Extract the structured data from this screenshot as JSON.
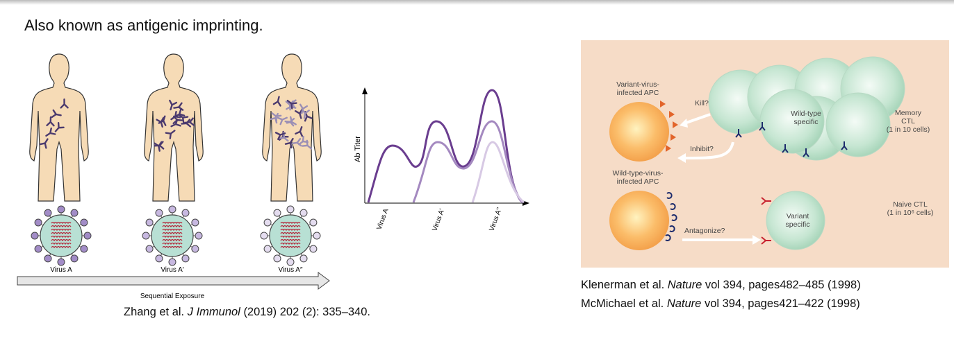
{
  "header": {
    "title": "Also known as antigenic imprinting."
  },
  "left_figure": {
    "virus_labels": [
      "Virus A",
      "Virus A′",
      "Virus A″"
    ],
    "arrow_label": "Sequential Exposure",
    "graph": {
      "y_axis_label": "Ab Titer",
      "x_labels": [
        "Virus A",
        "Virus A'",
        "Virus A''"
      ]
    },
    "citation": {
      "authors": "Zhang et al.",
      "journal": "J Immunol",
      "details": "(2019) 202 (2): 335–340."
    }
  },
  "right_figure": {
    "variant_apc": [
      "Variant-virus-",
      "infected APC"
    ],
    "kill": "Kill?",
    "inhibit": "Inhibit?",
    "wild_type_specific": [
      "Wild-type",
      "specific"
    ],
    "memory_ctl": [
      "Memory",
      "CTL",
      "(1 in 10 cells)"
    ],
    "wild_type_apc": [
      "Wild-type-virus-",
      "infected APC"
    ],
    "antagonize": "Antagonize?",
    "variant_specific": [
      "Variant",
      "specific"
    ],
    "naive_ctl": [
      "Naive CTL",
      "(1 in 10⁶ cells)"
    ],
    "citations": [
      {
        "authors": "Klenerman et al.",
        "journal": "Nature",
        "details": "vol 394, pages482–485 (1998)"
      },
      {
        "authors": "McMichael et al.",
        "journal": "Nature",
        "details": "vol 394, pages421–422 (1998)"
      }
    ]
  }
}
